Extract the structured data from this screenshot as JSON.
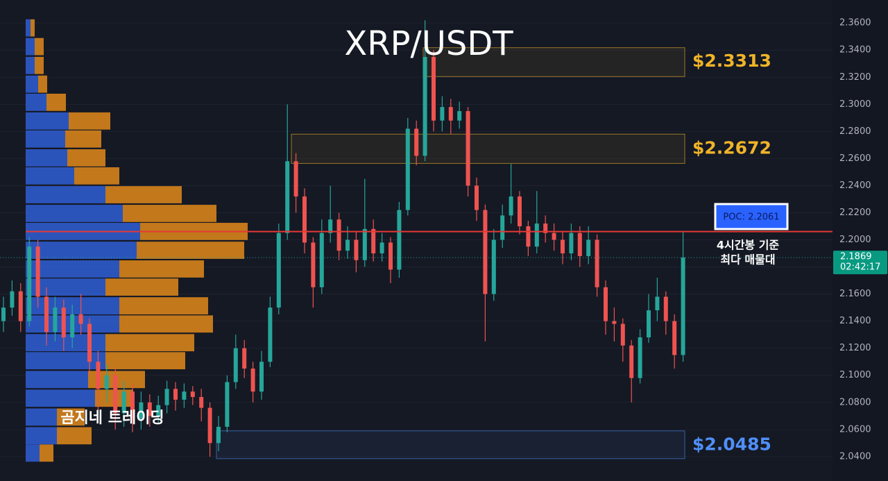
{
  "chart_data": {
    "type": "candlestick",
    "title": "XRP/USDT",
    "watermark": "곰지네 트레이딩",
    "ylim": [
      2.022,
      2.377
    ],
    "yticks": [
      {
        "value": 2.04,
        "label": "2.0400"
      },
      {
        "value": 2.06,
        "label": "2.0600"
      },
      {
        "value": 2.08,
        "label": "2.0800"
      },
      {
        "value": 2.1,
        "label": "2.1000"
      },
      {
        "value": 2.12,
        "label": "2.1200"
      },
      {
        "value": 2.14,
        "label": "2.1400"
      },
      {
        "value": 2.16,
        "label": "2.1600"
      },
      {
        "value": 2.18,
        "label": "2.1800"
      },
      {
        "value": 2.2,
        "label": "2.2000"
      },
      {
        "value": 2.22,
        "label": "2.2200"
      },
      {
        "value": 2.24,
        "label": "2.2400"
      },
      {
        "value": 2.26,
        "label": "2.2600"
      },
      {
        "value": 2.28,
        "label": "2.2800"
      },
      {
        "value": 2.3,
        "label": "2.3000"
      },
      {
        "value": 2.32,
        "label": "2.3200"
      },
      {
        "value": 2.34,
        "label": "2.3400"
      },
      {
        "value": 2.36,
        "label": "2.3600"
      }
    ],
    "up_color": "#26a69a",
    "down_color": "#ef5350",
    "open": [
      2.14,
      2.15,
      2.162,
      2.14,
      2.195,
      2.158,
      2.132,
      2.15,
      2.128,
      2.145,
      2.138,
      2.11,
      2.09,
      2.1,
      2.072,
      2.088,
      2.068,
      2.08,
      2.07,
      2.078,
      2.09,
      2.082,
      2.088,
      2.084,
      2.076,
      2.05,
      2.062,
      2.095,
      2.12,
      2.105,
      2.088,
      2.11,
      2.15,
      2.205,
      2.258,
      2.232,
      2.198,
      2.165,
      2.205,
      2.215,
      2.192,
      2.2,
      2.185,
      2.208,
      2.19,
      2.198,
      2.178,
      2.222,
      2.282,
      2.262,
      2.335,
      2.288,
      2.298,
      2.288,
      2.295,
      2.24,
      2.222,
      2.16,
      2.2,
      2.218,
      2.232,
      2.21,
      2.195,
      2.212,
      2.205,
      2.2,
      2.19,
      2.205,
      2.188,
      2.2,
      2.165,
      2.14,
      2.138,
      2.122,
      2.098,
      2.128,
      2.148,
      2.158,
      2.14,
      2.115
    ],
    "high": [
      2.158,
      2.17,
      2.168,
      2.202,
      2.2,
      2.165,
      2.158,
      2.156,
      2.152,
      2.16,
      2.142,
      2.118,
      2.108,
      2.105,
      2.096,
      2.094,
      2.088,
      2.086,
      2.085,
      2.096,
      2.095,
      2.094,
      2.092,
      2.09,
      2.08,
      2.07,
      2.1,
      2.13,
      2.126,
      2.11,
      2.118,
      2.158,
      2.212,
      2.3,
      2.264,
      2.238,
      2.202,
      2.215,
      2.24,
      2.22,
      2.21,
      2.206,
      2.245,
      2.215,
      2.205,
      2.202,
      2.228,
      2.29,
      2.288,
      2.362,
      2.34,
      2.306,
      2.304,
      2.302,
      2.298,
      2.246,
      2.226,
      2.208,
      2.226,
      2.256,
      2.236,
      2.214,
      2.236,
      2.218,
      2.212,
      2.206,
      2.212,
      2.21,
      2.21,
      2.204,
      2.17,
      2.15,
      2.142,
      2.126,
      2.134,
      2.16,
      2.172,
      2.162,
      2.145,
      2.206
    ],
    "low": [
      2.132,
      2.144,
      2.132,
      2.136,
      2.15,
      2.122,
      2.125,
      2.118,
      2.12,
      2.13,
      2.1,
      2.07,
      2.08,
      2.06,
      2.062,
      2.058,
      2.06,
      2.062,
      2.064,
      2.072,
      2.074,
      2.076,
      2.078,
      2.066,
      2.04,
      2.044,
      2.058,
      2.09,
      2.098,
      2.08,
      2.082,
      2.106,
      2.145,
      2.2,
      2.22,
      2.19,
      2.15,
      2.16,
      2.198,
      2.185,
      2.186,
      2.176,
      2.18,
      2.184,
      2.184,
      2.168,
      2.172,
      2.218,
      2.255,
      2.258,
      2.28,
      2.28,
      2.278,
      2.282,
      2.232,
      2.214,
      2.125,
      2.155,
      2.194,
      2.212,
      2.204,
      2.188,
      2.19,
      2.198,
      2.192,
      2.182,
      2.185,
      2.18,
      2.182,
      2.158,
      2.13,
      2.125,
      2.11,
      2.08,
      2.094,
      2.124,
      2.14,
      2.13,
      2.105,
      2.11
    ],
    "close": [
      2.15,
      2.162,
      2.14,
      2.195,
      2.158,
      2.132,
      2.15,
      2.128,
      2.145,
      2.138,
      2.11,
      2.09,
      2.1,
      2.072,
      2.088,
      2.068,
      2.08,
      2.07,
      2.078,
      2.09,
      2.082,
      2.088,
      2.084,
      2.076,
      2.05,
      2.062,
      2.095,
      2.12,
      2.105,
      2.088,
      2.11,
      2.15,
      2.205,
      2.258,
      2.232,
      2.198,
      2.165,
      2.205,
      2.215,
      2.192,
      2.2,
      2.185,
      2.208,
      2.19,
      2.198,
      2.178,
      2.222,
      2.282,
      2.262,
      2.335,
      2.288,
      2.298,
      2.288,
      2.295,
      2.24,
      2.222,
      2.16,
      2.2,
      2.218,
      2.232,
      2.21,
      2.195,
      2.212,
      2.205,
      2.2,
      2.19,
      2.205,
      2.188,
      2.2,
      2.165,
      2.14,
      2.138,
      2.122,
      2.098,
      2.128,
      2.148,
      2.158,
      2.14,
      2.115,
      2.187
    ],
    "volume_profile": {
      "buy_color": "#2f5fd6",
      "sell_color": "#e08a1a",
      "price": [
        2.3564,
        2.3426,
        2.3287,
        2.3149,
        2.3015,
        2.2877,
        2.2744,
        2.2605,
        2.2472,
        2.2333,
        2.2195,
        2.2062,
        2.1923,
        2.1785,
        2.1651,
        2.1513,
        2.1379,
        2.1241,
        2.1108,
        2.0969,
        2.0831,
        2.0692,
        2.0554,
        2.0426
      ],
      "buy": [
        7,
        13,
        13,
        18,
        30,
        62,
        57,
        60,
        70,
        115,
        140,
        165,
        160,
        135,
        115,
        135,
        135,
        115,
        115,
        90,
        100,
        45,
        45,
        20
      ],
      "sell": [
        6,
        13,
        13,
        13,
        28,
        60,
        52,
        55,
        65,
        110,
        135,
        155,
        155,
        122,
        105,
        128,
        135,
        128,
        115,
        82,
        55,
        40,
        50,
        20
      ]
    },
    "zones": [
      {
        "label": "$2.3313",
        "value": 2.3313,
        "top": 2.3418,
        "bottom": 2.3205,
        "color": "#f0b429"
      },
      {
        "label": "$2.2672",
        "value": 2.2672,
        "top": 2.278,
        "bottom": 2.2564,
        "color": "#f0b429"
      },
      {
        "label": "$2.0485",
        "value": 2.0485,
        "top": 2.059,
        "bottom": 2.0385,
        "color": "#4f8ff7"
      }
    ],
    "poc": {
      "label": "POC: 2.2061",
      "value": 2.2061,
      "color": "#e53935"
    },
    "annotation": [
      "4시간봉 기준",
      "최다 매물대"
    ],
    "current_price": {
      "value": 2.1869,
      "countdown": "02:42:17"
    }
  }
}
